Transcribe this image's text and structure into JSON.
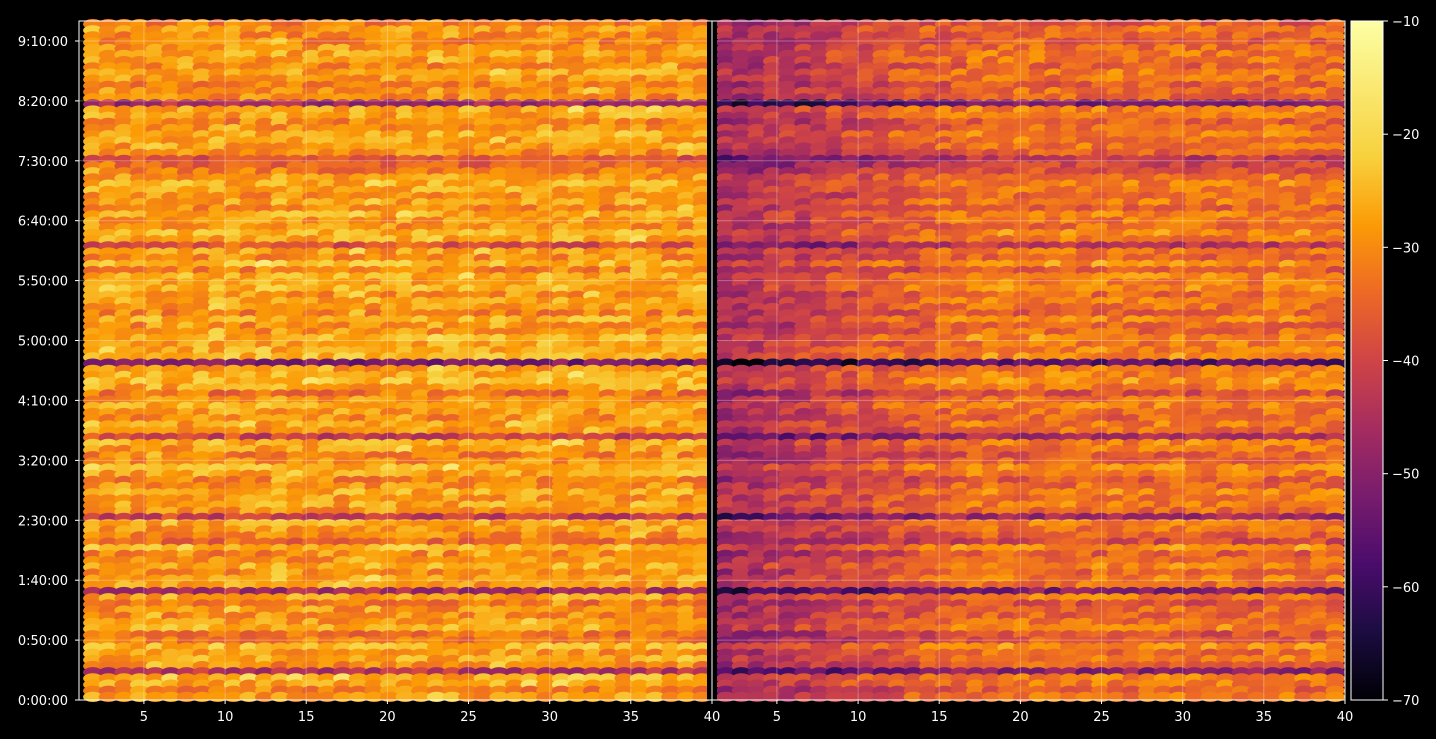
{
  "chart_data": {
    "type": "heatmap",
    "title": "",
    "xlabel": "",
    "ylabel": "",
    "colormap": "inferno",
    "grid": true,
    "background_color": "#000000",
    "panels": [
      {
        "name": "",
        "x_range": [
          1,
          40
        ],
        "x_ticks": [
          "5",
          "10",
          "15",
          "20",
          "25",
          "30",
          "35",
          "40"
        ],
        "tone": "bright"
      },
      {
        "name": "",
        "x_range": [
          40,
          80
        ],
        "x_ticks": [
          "5",
          "10",
          "15",
          "20",
          "25",
          "30",
          "35",
          "40"
        ],
        "tone": "dark"
      }
    ],
    "y_range_seconds": [
      0,
      34000
    ],
    "y_ticks": [
      "0:00:00",
      "0:50:00",
      "1:40:00",
      "2:30:00",
      "3:20:00",
      "4:10:00",
      "5:00:00",
      "5:50:00",
      "6:40:00",
      "7:30:00",
      "8:20:00",
      "9:10:00"
    ],
    "colorbar": {
      "min": -70,
      "max": -10,
      "ticks": [
        "−70",
        "−60",
        "−50",
        "−40",
        "−30",
        "−20",
        "−10"
      ]
    },
    "row_means": [
      -28,
      -31,
      -27,
      -26,
      -44,
      -30,
      -27,
      -29,
      -25,
      -32,
      -33,
      -26,
      -28,
      -30,
      -29,
      -33,
      -27,
      -46,
      -28,
      -27,
      -30,
      -26,
      -29,
      -31,
      -24,
      -34,
      -30,
      -28,
      -27,
      -42,
      -29,
      -27,
      -28,
      -26,
      -29,
      -31,
      -27,
      -25,
      -30,
      -32,
      -28,
      -26,
      -41,
      -29,
      -27,
      -30,
      -28,
      -26,
      -29,
      -33,
      -27,
      -24,
      -26,
      -28,
      -52,
      -25,
      -26,
      -27,
      -25,
      -29,
      -30,
      -26,
      -31,
      -28,
      -27,
      -29,
      -25,
      -27,
      -26,
      -31,
      -24,
      -30,
      -28,
      -38,
      -27,
      -25,
      -29,
      -28,
      -26,
      -30,
      -27,
      -29,
      -27,
      -26,
      -28,
      -32,
      -35,
      -38,
      -30,
      -28,
      -27,
      -26,
      -29,
      -31,
      -27,
      -26,
      -47,
      -30,
      -29,
      -31,
      -28,
      -27,
      -30,
      -28,
      -27,
      -29,
      -31,
      -30,
      -28,
      -32
    ]
  }
}
